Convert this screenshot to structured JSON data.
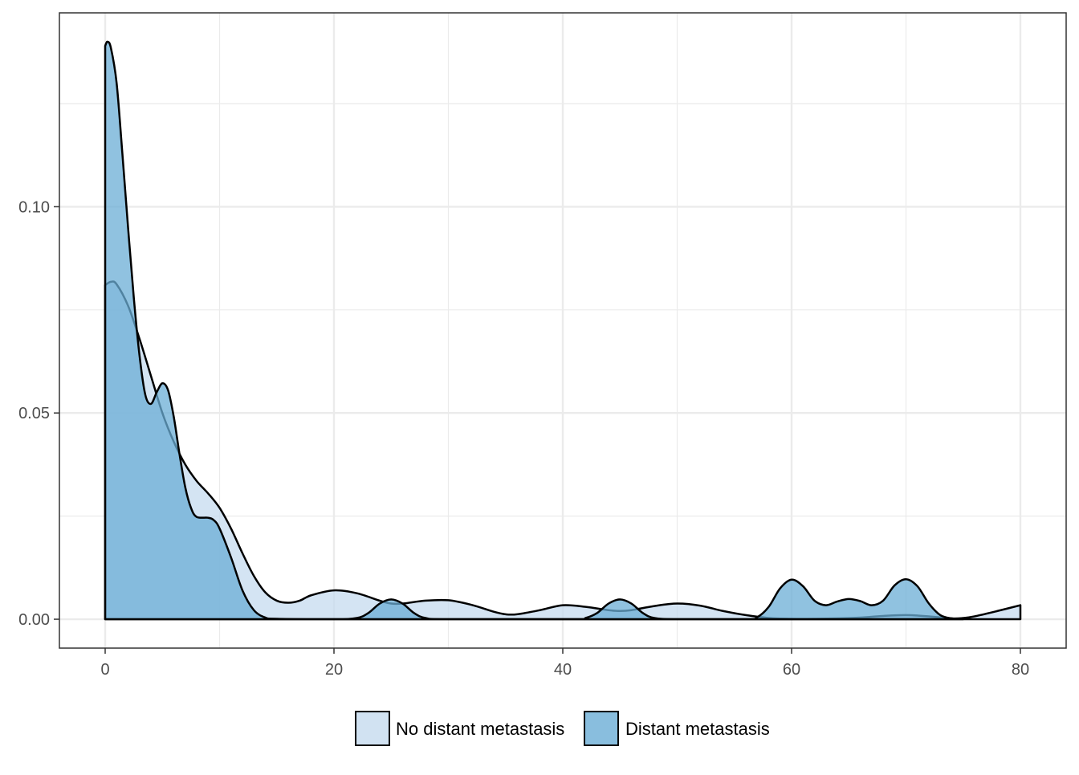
{
  "chart_data": {
    "type": "area",
    "title": "",
    "xlabel": "",
    "ylabel": "",
    "xlim": [
      -4,
      84
    ],
    "ylim": [
      -0.007,
      0.147
    ],
    "x_ticks": [
      0,
      20,
      40,
      60,
      80
    ],
    "x_tick_labels": [
      "0",
      "20",
      "40",
      "60",
      "80"
    ],
    "y_ticks": [
      0.0,
      0.05,
      0.1
    ],
    "y_tick_labels": [
      "0.00",
      "0.05",
      "0.10"
    ],
    "grid": true,
    "legend_position": "bottom",
    "series": [
      {
        "name": "No distant metastasis",
        "color": "#c6dbef",
        "points": [
          [
            0.0,
            0.081
          ],
          [
            0.5,
            0.0818
          ],
          [
            1.0,
            0.0812
          ],
          [
            2.0,
            0.076
          ],
          [
            3.0,
            0.068
          ],
          [
            4.0,
            0.059
          ],
          [
            5.0,
            0.05
          ],
          [
            6.0,
            0.043
          ],
          [
            7.0,
            0.0375
          ],
          [
            8.0,
            0.0335
          ],
          [
            9.0,
            0.0305
          ],
          [
            10.0,
            0.027
          ],
          [
            11.0,
            0.022
          ],
          [
            12.0,
            0.016
          ],
          [
            13.0,
            0.0105
          ],
          [
            14.0,
            0.0065
          ],
          [
            15.0,
            0.0045
          ],
          [
            16.0,
            0.004
          ],
          [
            17.0,
            0.0045
          ],
          [
            18.0,
            0.0058
          ],
          [
            20.0,
            0.007
          ],
          [
            22.0,
            0.0063
          ],
          [
            24.0,
            0.0045
          ],
          [
            25.0,
            0.0038
          ],
          [
            26.0,
            0.0038
          ],
          [
            28.0,
            0.0045
          ],
          [
            30.0,
            0.0046
          ],
          [
            32.0,
            0.0035
          ],
          [
            34.0,
            0.0018
          ],
          [
            35.0,
            0.0012
          ],
          [
            36.0,
            0.0012
          ],
          [
            38.0,
            0.0022
          ],
          [
            40.0,
            0.0034
          ],
          [
            42.0,
            0.003
          ],
          [
            44.0,
            0.0022
          ],
          [
            45.0,
            0.002
          ],
          [
            46.0,
            0.0022
          ],
          [
            48.0,
            0.0032
          ],
          [
            50.0,
            0.0038
          ],
          [
            52.0,
            0.0033
          ],
          [
            54.0,
            0.002
          ],
          [
            56.0,
            0.001
          ],
          [
            58.0,
            0.0003
          ],
          [
            60.0,
            0.0001
          ],
          [
            62.0,
            0.0001
          ],
          [
            64.0,
            0.0002
          ],
          [
            66.0,
            0.0004
          ],
          [
            68.0,
            0.0008
          ],
          [
            70.0,
            0.001
          ],
          [
            72.0,
            0.0007
          ],
          [
            74.0,
            0.0002
          ],
          [
            75.0,
            0.0003
          ],
          [
            76.0,
            0.0007
          ],
          [
            78.0,
            0.002
          ],
          [
            80.0,
            0.0034
          ]
        ]
      },
      {
        "name": "Distant metastasis",
        "color": "#6baed6",
        "points": [
          [
            0.0,
            0.139
          ],
          [
            0.2,
            0.14
          ],
          [
            0.5,
            0.1385
          ],
          [
            1.0,
            0.13
          ],
          [
            1.5,
            0.113
          ],
          [
            2.0,
            0.095
          ],
          [
            2.5,
            0.078
          ],
          [
            3.0,
            0.064
          ],
          [
            3.5,
            0.0545
          ],
          [
            4.0,
            0.0522
          ],
          [
            4.5,
            0.055
          ],
          [
            5.0,
            0.0572
          ],
          [
            5.5,
            0.0555
          ],
          [
            6.0,
            0.049
          ],
          [
            6.5,
            0.04
          ],
          [
            7.0,
            0.032
          ],
          [
            7.5,
            0.027
          ],
          [
            8.0,
            0.0248
          ],
          [
            9.0,
            0.0246
          ],
          [
            9.5,
            0.024
          ],
          [
            10.0,
            0.022
          ],
          [
            11.0,
            0.015
          ],
          [
            12.0,
            0.007
          ],
          [
            13.0,
            0.0022
          ],
          [
            14.0,
            0.0004
          ],
          [
            15.0,
            0.0001
          ],
          [
            20.0,
            0.0
          ],
          [
            22.0,
            0.0003
          ],
          [
            23.0,
            0.0015
          ],
          [
            24.0,
            0.0038
          ],
          [
            25.0,
            0.0048
          ],
          [
            26.0,
            0.0038
          ],
          [
            27.0,
            0.0015
          ],
          [
            28.0,
            0.0003
          ],
          [
            30.0,
            0.0
          ],
          [
            41.0,
            0.0
          ],
          [
            42.0,
            0.0003
          ],
          [
            43.0,
            0.0015
          ],
          [
            44.0,
            0.0038
          ],
          [
            45.0,
            0.0048
          ],
          [
            46.0,
            0.0038
          ],
          [
            47.0,
            0.0015
          ],
          [
            48.0,
            0.0003
          ],
          [
            50.0,
            0.0
          ],
          [
            56.0,
            0.0
          ],
          [
            57.0,
            0.0005
          ],
          [
            58.0,
            0.003
          ],
          [
            59.0,
            0.0075
          ],
          [
            60.0,
            0.0096
          ],
          [
            61.0,
            0.008
          ],
          [
            62.0,
            0.0045
          ],
          [
            63.0,
            0.0034
          ],
          [
            64.0,
            0.0043
          ],
          [
            65.0,
            0.0049
          ],
          [
            66.0,
            0.0044
          ],
          [
            67.0,
            0.0034
          ],
          [
            68.0,
            0.0045
          ],
          [
            69.0,
            0.0082
          ],
          [
            70.0,
            0.0097
          ],
          [
            71.0,
            0.008
          ],
          [
            72.0,
            0.0038
          ],
          [
            73.0,
            0.001
          ],
          [
            74.0,
            0.0002
          ],
          [
            75.0,
            0.0
          ]
        ]
      }
    ]
  }
}
